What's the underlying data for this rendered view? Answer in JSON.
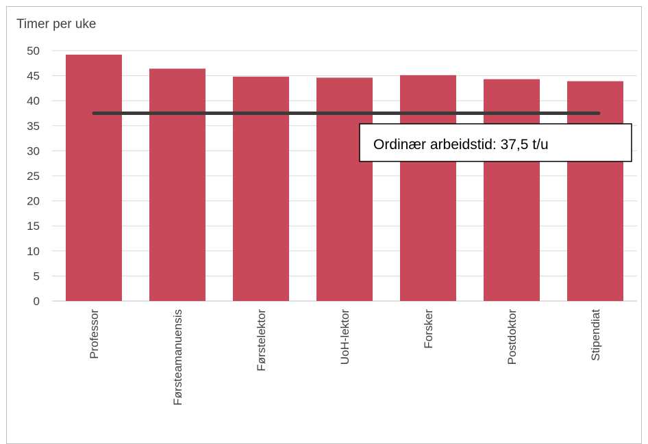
{
  "chart_data": {
    "type": "bar",
    "ylabel": "Timer per uke",
    "xlabel": "",
    "categories": [
      "Professor",
      "Førsteamanuensis",
      "Førstelektor",
      "UoH-lektor",
      "Forsker",
      "Postdoktor",
      "Stipendiat"
    ],
    "values": [
      49.2,
      46.4,
      44.8,
      44.6,
      45.1,
      44.3,
      43.9
    ],
    "ylim": [
      0,
      50
    ],
    "yticks": [
      0,
      5,
      10,
      15,
      20,
      25,
      30,
      35,
      40,
      45,
      50
    ],
    "grid": true,
    "bar_color": "#c84a5a",
    "reference_line": {
      "value": 37.5,
      "color": "#3a3a3a",
      "label": "Ordinær arbeidstid: 37,5 t/u"
    }
  }
}
